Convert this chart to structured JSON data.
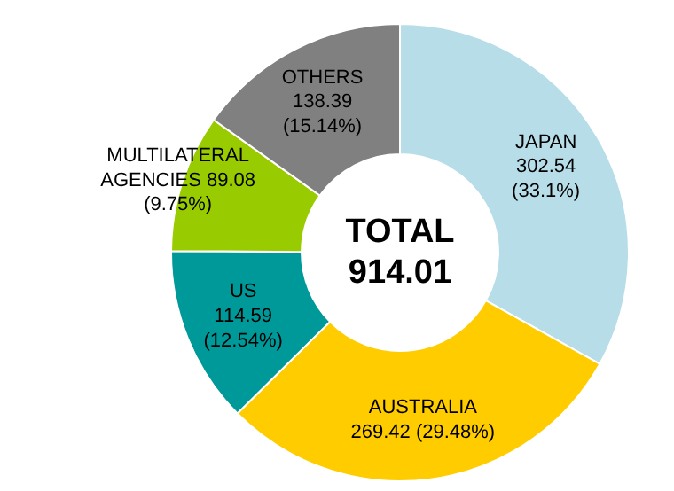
{
  "chart_data": {
    "type": "donut",
    "categories": [
      "JAPAN",
      "AUSTRALIA",
      "US",
      "MULTILATERAL AGENCIES",
      "OTHERS"
    ],
    "values": [
      302.54,
      269.42,
      114.59,
      89.08,
      138.39
    ],
    "colors": [
      "#b7dde8",
      "#ffcc00",
      "#009999",
      "#99cc00",
      "#808080"
    ],
    "value_labels": [
      "302.54\n(33.1%)",
      "269.42 (29.48%)",
      "114.59\n(12.54%)",
      "89.08\n(9.75%)",
      "138.39\n(15.14%)"
    ],
    "annotations": [
      "TOTAL\n914.01"
    ]
  }
}
